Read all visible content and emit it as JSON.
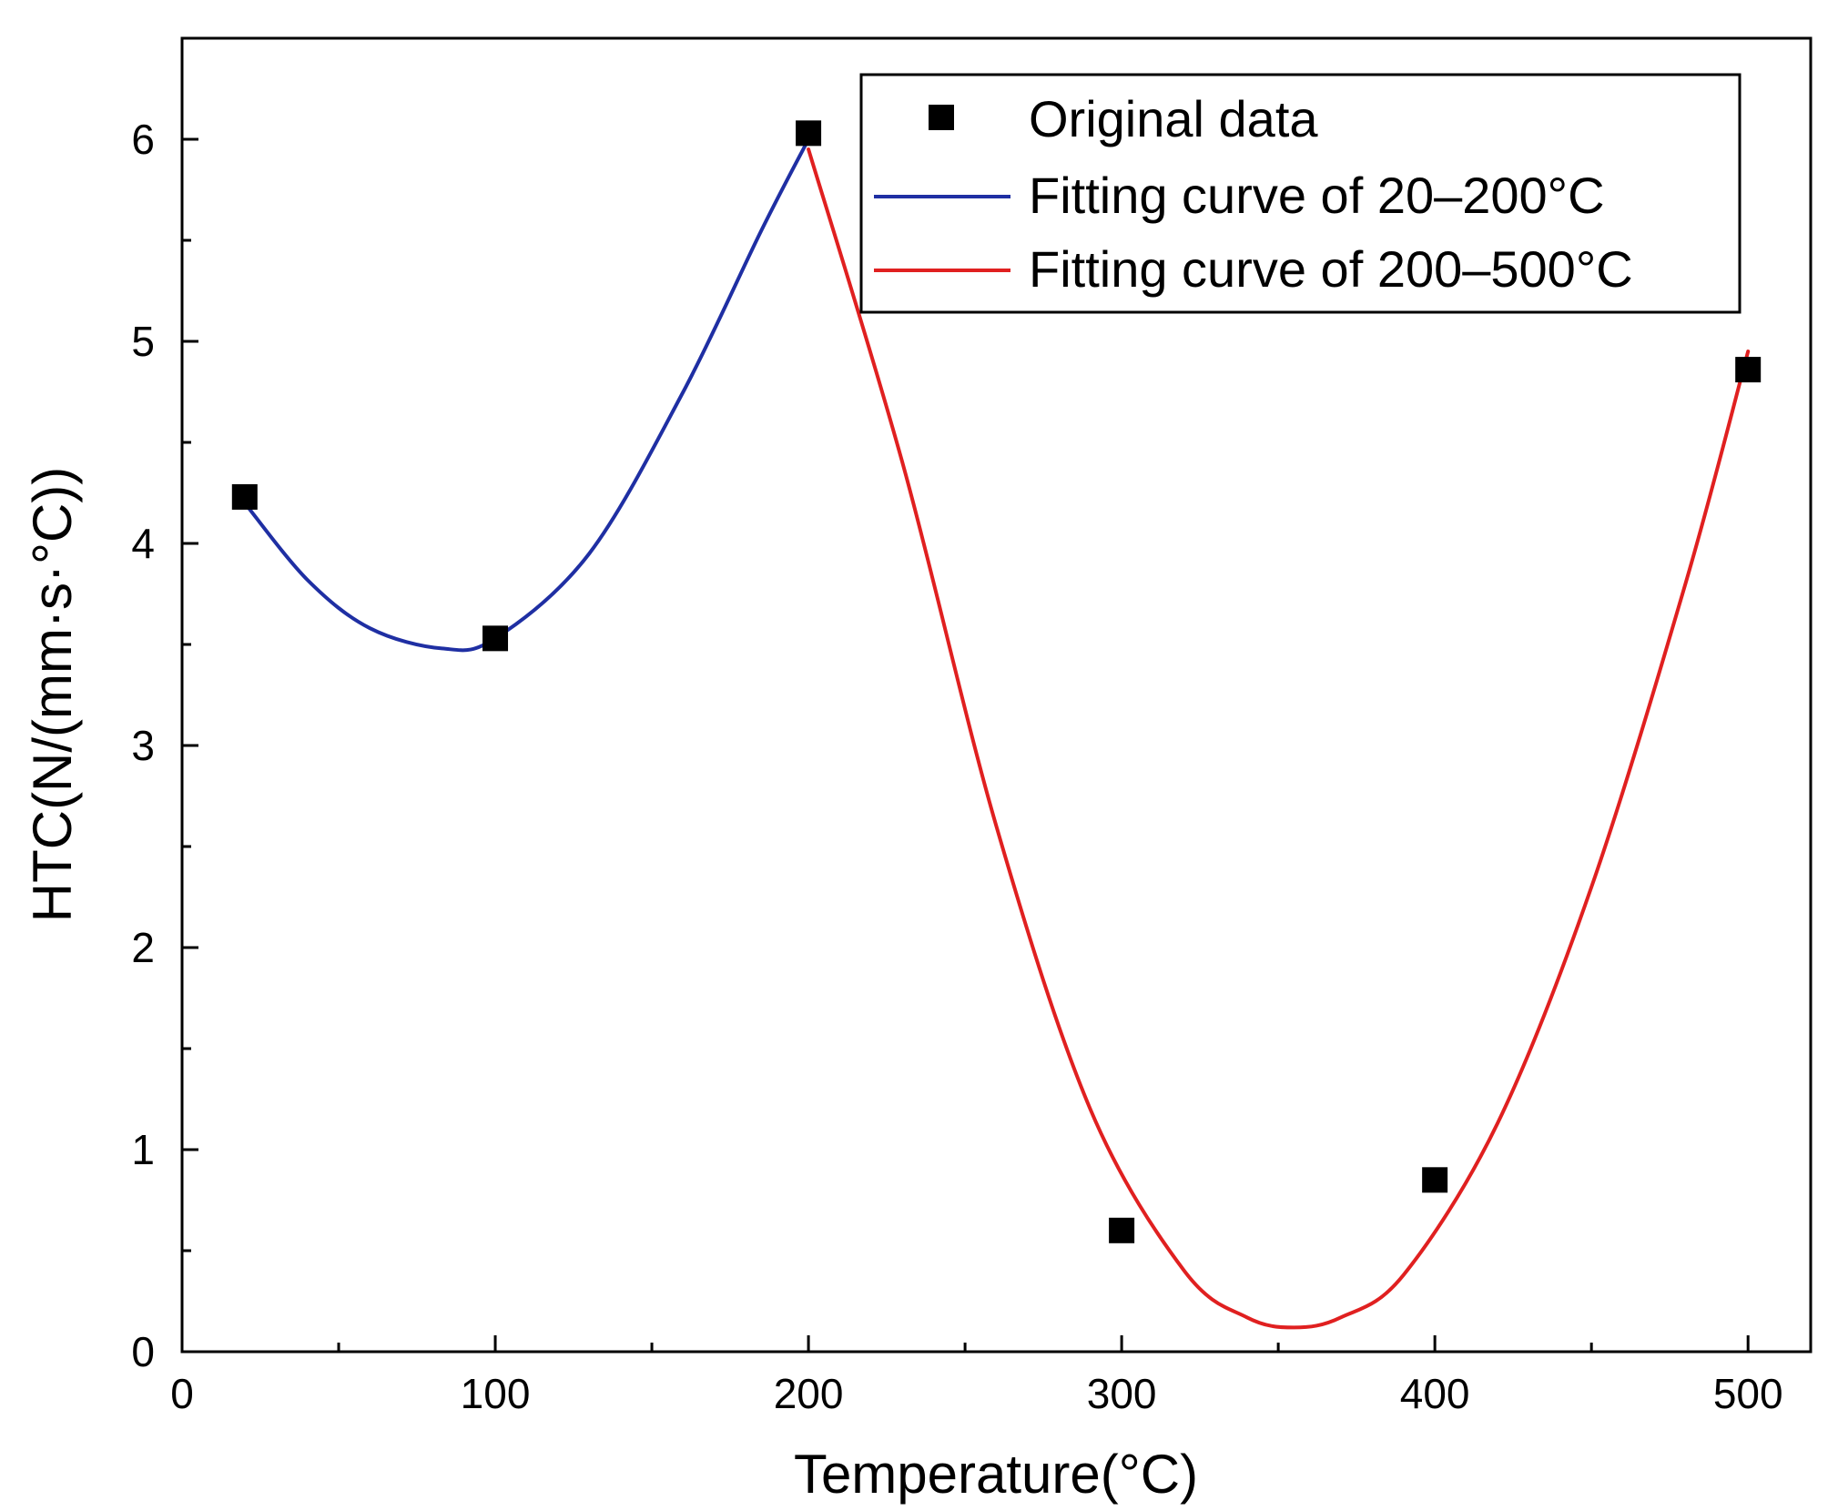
{
  "chart_data": {
    "type": "scatter",
    "title": "",
    "xlabel": "Temperature(°C)",
    "ylabel": "HTC(N/(mm·s·°C))",
    "xlim": [
      0,
      520
    ],
    "ylim": [
      0,
      6.5
    ],
    "xticks": [
      0,
      100,
      200,
      300,
      400,
      500
    ],
    "xtick_labels": [
      "0",
      "100",
      "200",
      "300",
      "400",
      "500"
    ],
    "yticks": [
      0,
      1,
      2,
      3,
      4,
      5,
      6
    ],
    "ytick_labels": [
      "0",
      "1",
      "2",
      "3",
      "4",
      "5",
      "6"
    ],
    "legend_position": "top-right",
    "series": [
      {
        "name": "Original data",
        "kind": "scatter",
        "marker": "square",
        "color": "#000000",
        "x": [
          20,
          100,
          200,
          300,
          400,
          500
        ],
        "y": [
          4.23,
          3.53,
          6.03,
          0.6,
          0.85,
          4.86
        ]
      },
      {
        "name": "Fitting curve of 20–200°C",
        "kind": "line",
        "color": "#1f2fa3",
        "x": [
          20,
          40,
          60,
          83,
          100,
          130,
          160,
          185,
          200
        ],
        "y": [
          4.2,
          3.82,
          3.58,
          3.48,
          3.53,
          3.95,
          4.75,
          5.55,
          6.0
        ]
      },
      {
        "name": "Fitting curve of 200–500°C",
        "kind": "line",
        "color": "#e02020",
        "x": [
          200,
          230,
          260,
          290,
          320,
          340,
          355,
          370,
          390,
          420,
          450,
          480,
          500
        ],
        "y": [
          5.95,
          4.4,
          2.6,
          1.2,
          0.4,
          0.17,
          0.12,
          0.17,
          0.38,
          1.13,
          2.3,
          3.8,
          4.95
        ]
      }
    ]
  }
}
